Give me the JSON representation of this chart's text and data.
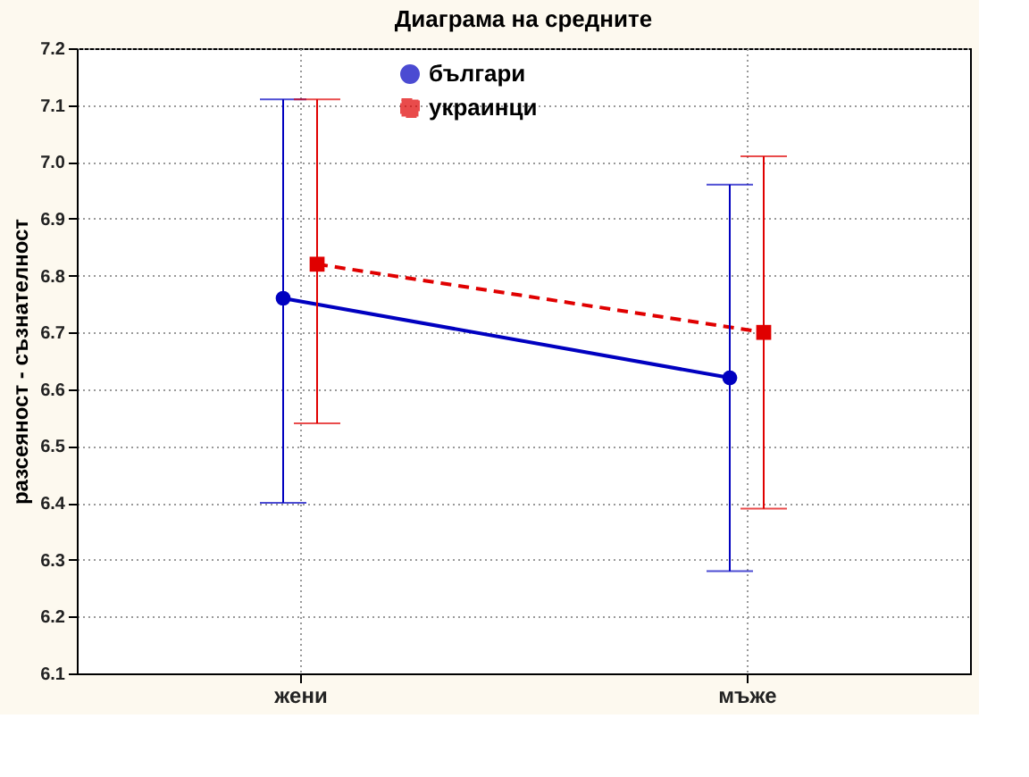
{
  "chart_data": {
    "type": "line",
    "title": "Диаграма на средните",
    "ylabel": "разсеяност - съзнателност",
    "categories": [
      "жени",
      "мъже"
    ],
    "series": [
      {
        "name": "българи",
        "color": "#0000c0",
        "values": [
          6.76,
          6.62
        ],
        "errors": [
          [
            6.4,
            7.11
          ],
          [
            6.28,
            6.96
          ]
        ],
        "marker": "circle",
        "line_style": "solid"
      },
      {
        "name": "украинци",
        "color": "#e00000",
        "values": [
          6.82,
          6.7
        ],
        "errors": [
          [
            6.54,
            7.11
          ],
          [
            6.39,
            7.01
          ]
        ],
        "marker": "square",
        "line_style": "dashed"
      }
    ],
    "ylim": [
      6.1,
      7.2
    ],
    "yticks": [
      6.1,
      6.2,
      6.3,
      6.4,
      6.5,
      6.6,
      6.7,
      6.8,
      6.9,
      {
        "value": 7.0,
        "label": "7.0"
      },
      7.1,
      7.2
    ],
    "grid": true,
    "legend": "top"
  }
}
